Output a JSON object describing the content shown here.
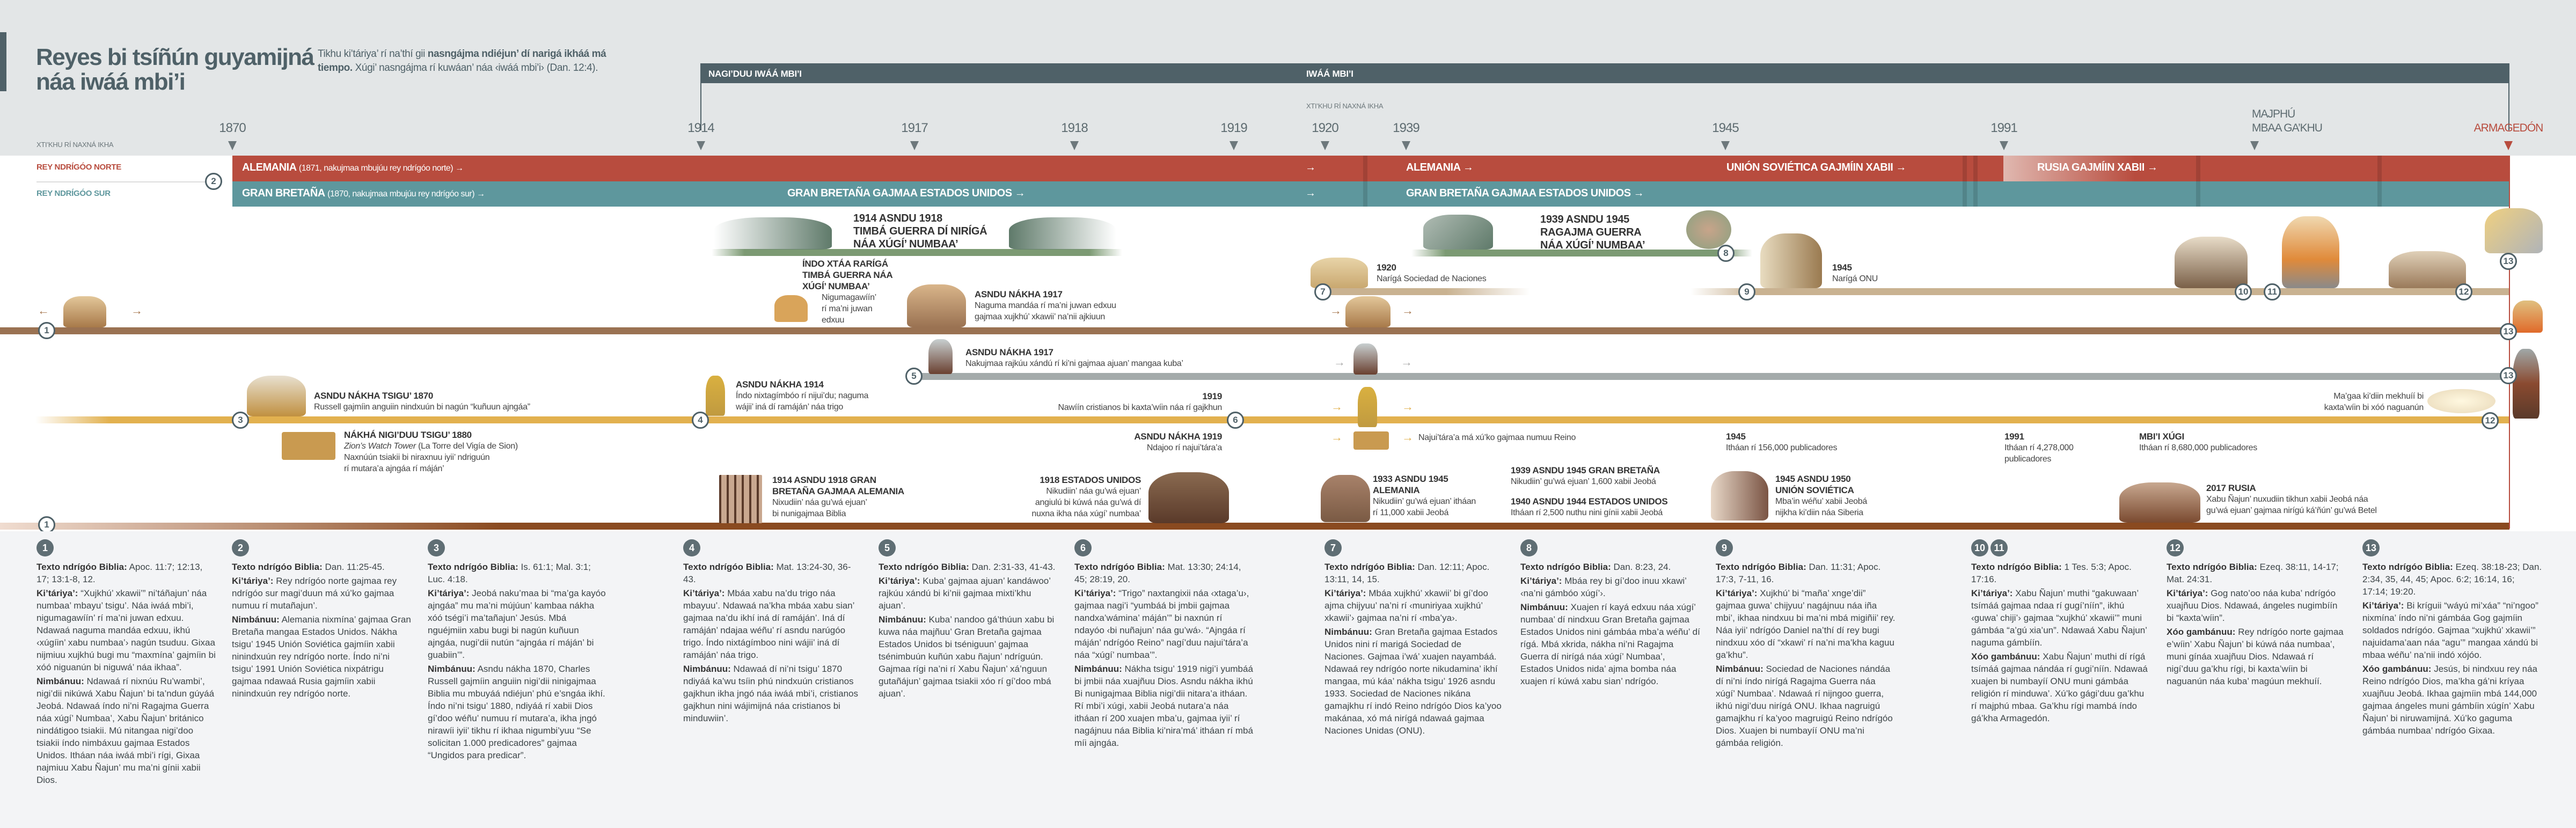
{
  "header": {
    "title": "Reyes bi tsíñún guyamijná\nnáa iwáá mbi’i",
    "intro_pre": "Tikhu ki’táriya’ rí na’thí gii ",
    "intro_bold": "nasngájma ndiéjun’ dí narigá ikháá má tiempo.",
    "intro_post": " Xúgi’ nasngájma rí kuwáan’ náa ‹iwáá mbi’i› (Dan. 12:4)."
  },
  "eras": [
    {
      "label": "NAGI’DUU IWÁÁ MBI’I"
    },
    {
      "label": "IWÁÁ MBI’I"
    }
  ],
  "timeline_label": "XTI’KHU RÍ NAXNÁ IKHA",
  "years": [
    "1870",
    "1914",
    "1917",
    "1918",
    "1919",
    "1920",
    "1939",
    "1945",
    "1991",
    "MAJPHÚ\nMBAA GA’KHU",
    "ARMAGEDÓN"
  ],
  "rows": {
    "north_label": "REY NDRÍGÓO NORTE",
    "south_label": "REY NDRÍGÓO SUR"
  },
  "bars": {
    "alemania_1871": "ALEMANIA",
    "alemania_1871_note": "(1871, nakujmaa mbujúu rey ndrígóo norte) →",
    "gb_1870": "GRAN BRETAÑA",
    "gb_1870_note": "(1870, nakujmaa mbujúu rey ndrígóo sur) →",
    "gb_us": "GRAN BRETAÑA GAJMAA ESTADOS UNIDOS →",
    "arrow": "→",
    "alemania": "ALEMANIA →",
    "gb_us_2": "GRAN BRETAÑA GAJMAA ESTADOS UNIDOS →",
    "ussr": "UNIÓN SOVIÉTICA GAJMÍIN XABII →",
    "russia": "RUSIA GAJMÍIN XABII →"
  },
  "colors": {
    "north": "#b84c3e",
    "south": "#5e979d",
    "era": "#4f6168",
    "beast_line": "#9a7252",
    "wheat_line": "#e2b14f",
    "statue_line": "#a4abab",
    "war_line": "#7c9a73",
    "un_line": "#c9b291"
  },
  "events": {
    "wwi": {
      "title": "1914 ASNDU 1918\nTIMBÁ GUERRA DÍ NIRÍGÁ\nNÁA XÚGÍ’ NUMBAA’"
    },
    "wwi_end": {
      "title": "ÍNDO XTÁA RARÍGÁ\nTIMBÁ GUERRA NÁA\nXÚGÍ’ NUMBAA’",
      "body": "Nigumagawíín’\nrí ma’ni juwan\nedxuu"
    },
    "e1917a": {
      "title": "ASNDU NÁKHA 1917",
      "body": "Naguma mandáa rí ma’ni juwan edxuu\ngajmaa xujkhú’ xkawii’ na’nii ajkiuun"
    },
    "e1917b": {
      "title": "ASNDU NÁKHA 1917",
      "body": "Nakujmaa rajkúu xándú rí ki’ni gajmaa ajuan’ mangaa kuba’"
    },
    "e1870": {
      "title": "ASNDU NÁKHA TSIGU’ 1870",
      "body": "Russell gajmíin anguiin nindxuún bi nagún “kuñuun ajngáa”"
    },
    "e1880": {
      "title": "NÁKHÁ NIGI’DUU TSIGU’ 1880",
      "italic": "Zion’s Watch Tower",
      "body": " (La Torre del Vigía de Sion)\nNaxnúún tsiakii bi niraxnuu iyii’ ndriguún\nrí mutara’a ajngáa rí máján’"
    },
    "e1914": {
      "title": "ASNDU NÁKHA 1914",
      "body": "Índo nixtagímbóo rí nijui’du; naguma\nwájii’ iná dí ramáján’ náa trigo"
    },
    "e1919a": {
      "title": "1919",
      "body": "Nawíín cristianos bi kaxta’wíin náa rí gajkhun"
    },
    "e1919b": {
      "title": "ASNDU NÁKHA 1919",
      "body": "Ndajoo rí najui’tára’a"
    },
    "prison": {
      "title": "1914 ASNDU 1918 GRAN\nBRETAÑA GAJMAA ALEMANIA",
      "body": "Nixudiin’ náa gu’wá ejuan’\nbi nunigajmaa Biblia"
    },
    "us1918": {
      "title": "1918 ESTADOS UNIDOS",
      "body": "Nikudiin’ náa gu’wá ejuan’\nangiulú bi kúwá náa gu’wá dí\nnuxna ikha náa xúgí’ numbaa’"
    },
    "wwii": {
      "title": "1939 ASNDU 1945\nRAGAJMA GUERRA\nNÁA XÚGÍ’ NUMBAA’"
    },
    "league": {
      "title": "1920",
      "body": "Narígá Sociedad de Naciones"
    },
    "un": {
      "title": "1945",
      "body": "Narígá ONU"
    },
    "kingdom": {
      "body": "Najui’tára’a má xú’ko gajmaa numuu Reino"
    },
    "pub1945": {
      "title": "1945",
      "body": "Itháan rí 156,000 publicadores"
    },
    "germany": {
      "title": "1933 ASNDU 1945\nALEMANIA",
      "body": "Nikudiin’ gu’wá ejuan’ itháan\nrí 11,000 xabii Jeobá"
    },
    "gb": {
      "title": "1939 ASNDU 1945 GRAN BRETAÑA",
      "body": "Nikudiin’ gu’wá ejuan’ 1,600 xabii Jeobá"
    },
    "us": {
      "title": "1940 ASNDU 1944 ESTADOS UNIDOS",
      "body": "Itháan rí 2,500 nuthu nini gínii xabii Jeobá"
    },
    "ussr": {
      "title": "1945 ASNDU 1950\nUNIÓN SOVIÉTICA",
      "body": "Mba’in wéñu’ xabii Jeobá\nnijkha ki’diin náa Siberia"
    },
    "gather": {
      "body": "Ma’gaa ki’diin mekhuíí bi\nkaxta’wíin bi xóó naguanún"
    },
    "pub1991": {
      "title": "1991",
      "body": "Itháan rí 4,278,000\npublicadores"
    },
    "today": {
      "title": "MBI’I XÚGI",
      "body": "Itháan rí 8,680,000 publicadores"
    },
    "russia": {
      "title": "2017 RUSIA",
      "body": "Xabu Ñajun’ nuxudiin tikhun xabii Jeobá náa\ngu’wá ejuan’ gajmaa nirígú ká’ñún’ gu’wá Betel"
    }
  },
  "notes": [
    {
      "nums": [
        "1"
      ],
      "s": [
        {
          "l": "Texto ndrígóo Biblia:",
          "t": "Apoc. 11:7; 12:13, 17; 13:1-8, 12."
        },
        {
          "l": "Ki’táriya’:",
          "t": "“Xujkhú’ xkawii’” ni’táñajun’ náa numbaa’ mbayu’ tsigu’. Náa iwáá mbi’i, nigumagawíín’ rí ma’ni juwan edxuu. Ndawaá naguma mandáa edxuu, ikhú ‹xúgíin’ xabu numbaa’› nagún tsuduu. Gixaa nijmiuu xujkhú bugi mu “maxmína’ gajmíin bi xóó niguanún bi niguwá’ náa ikhaa”."
        },
        {
          "l": "Nimbánuu:",
          "t": "Ndawaá rí nixnúu Ru’wambi’, nigi’dii nikúwá Xabu Ñajun’ bi ta’ndun gúyáá Jeobá. Ndawaá índo ni’ni Ragajma Guerra náa xúgí’ Numbaa’, Xabu Ñajun’ británico nindátigoo tsiakii. Mú nitangaa nigi’doo tsiakii índo nimbáxuu gajmaa Estados Unidos. Itháan náa iwáá mbi’i rígi, Gixaa najmiuu Xabu Ñajun’ mu ma’ni gínii xabii Dios."
        }
      ]
    },
    {
      "nums": [
        "2"
      ],
      "s": [
        {
          "l": "Texto ndrígóo Biblia:",
          "t": "Dan. 11:25-45."
        },
        {
          "l": "Ki’táriya’:",
          "t": "Rey ndrígóo norte gajmaa rey ndrígóo sur magi’duun má xú’ko gajmaa numuu rí mutañajun’."
        },
        {
          "l": "Nimbánuu:",
          "t": "Alemania nixmína’ gajmaa Gran Bretaña mangaa Estados Unidos. Nákha tsigu’ 1945 Unión Soviética gajmíin xabii ninindxuún rey ndrígóo norte. Índo ni’ni tsigu’ 1991 Unión Soviética nixpátrigu gajmaa ndawaá Rusia gajmíin xabii ninindxuún rey ndrígóo norte."
        }
      ]
    },
    {
      "nums": [
        "3"
      ],
      "s": [
        {
          "l": "Texto ndrígóo Biblia:",
          "t": "Is. 61:1; Mal. 3:1; Luc. 4:18."
        },
        {
          "l": "Ki’táriya’:",
          "t": "Jeobá naku’maa bi “ma’ga kayóo ajngáa” mu ma’ni mújúun’ kambaa nákha xóó tségi’i ma’tañajun’ Jesús. Mbá nguéjmiin xabu bugi bi nagún kuñuun ajngáa, nugi’dii nutún “ajngáa rí máján’ bi guabiin’”."
        },
        {
          "l": "Nimbánuu:",
          "t": "Asndu nákha 1870, Charles Russell gajmíin anguiin nigi’dii ninigajmaa Biblia mu mbuyáá ndiéjun’ phú e’sngáa ikhí. Índo ni’ni tsigu’ 1880, ndiyáá rí xabii Dios gí’doo wéñu’ numuu rí mutara’a, ikha jngó nirawíi iyii’ tikhu rí ikhaa nigumbi’yuu “Se solicitan 1.000 predicadores” gajmaa “Ungidos para predicar”."
        }
      ]
    },
    {
      "nums": [
        "4"
      ],
      "s": [
        {
          "l": "Texto ndrígóo Biblia:",
          "t": "Mat. 13:24-30, 36-43."
        },
        {
          "l": "Ki’táriya’:",
          "t": "Mbáa xabu na’du trigo náa mbayuu’. Ndawaá na’kha mbáa xabu sian’ gajmaa na’du ikhí iná dí ramáján’. Iná dí ramáján’ ndajaa wéñu’ rí asndu narúgóo trigo. Índo nixtágímboo nini wájii’ iná dí ramáján’ náa trigo."
        },
        {
          "l": "Nimbánuu:",
          "t": "Ndawaá dí ni’ni tsigu’ 1870 ndiyáá ka’wu tsíin phú nindxuún cristianos gajkhun ikha jngó náa iwáá mbi’i, cristianos gajkhun nini wájimijná náa cristianos bi minduwiin’."
        }
      ]
    },
    {
      "nums": [
        "5"
      ],
      "s": [
        {
          "l": "Texto ndrígóo Biblia:",
          "t": "Dan. 2:31-33, 41-43."
        },
        {
          "l": "Ki’táriya’:",
          "t": "Kuba’ gajmaa ajuan’ kandáwoo’ rajkúu xándú bi ki’nii gajmaa mixti’khu ajuan’."
        },
        {
          "l": "Nimbánuu:",
          "t": "Kuba’ nandoo gá’thúun xabu bi kuwa náa majñuu’ Gran Bretaña gajmaa Estados Unidos bi tséniguun’ gajmaa tsénimbuún kuñún xabu ñajun’ ndríguún. Gajmaa rígi na’ni rí Xabu Ñajun’ xá’nguun gutañájun’ gajmaa tsiakii xóo rí gí’doo mbá ajuan’."
        }
      ]
    },
    {
      "nums": [
        "6"
      ],
      "s": [
        {
          "l": "Texto ndrígóo Biblia:",
          "t": "Mat. 13:30; 24:14, 45; 28:19, 20."
        },
        {
          "l": "Ki’táriya’:",
          "t": "“Trigo” naxtangixii náa ‹xtaga’u›, gajmaa nagi’i “yumbáá bi jmbii gajmaa nandxa’wámina’ máján’” bi naxnún rí ndayóo ‹bi nuñajun’ náa gu’wá›. “Ajngáa rí máján’ ndrígóo Reino” nagí’duu najui’tára’a náa “xúgí’ numbaa’”."
        },
        {
          "l": "Nimbánuu:",
          "t": "Nákha tsigu’ 1919 nigi’i yumbáá bi jmbii náa xuajñuu Dios. Asndu nákha ikhú Bi nunigajmaa Biblia nigi’dii nitara’a itháan. Rí mbi’i xúgi, xabii Jeobá nutara’a náa itháan rí 200 xuajen mba’u, gajmaa iyii’ rí nagájnuu náa Biblia ki’nira’má’ itháan rí mbá míi ajngáa."
        }
      ]
    },
    {
      "nums": [
        "7"
      ],
      "s": [
        {
          "l": "Texto ndrígóo Biblia:",
          "t": "Dan. 12:11; Apoc. 13:11, 14, 15."
        },
        {
          "l": "Ki’táriya’:",
          "t": "Mbáa xujkhú’ xkawii’ bi gí’doo ajma chijyuu’ na’ni rí ‹muniriyaa xujkhú’ xkawii’› gajmaa na’ni rí ‹mba’ya›."
        },
        {
          "l": "Nimbánuu:",
          "t": "Gran Bretaña gajmaa Estados Unidos nini rí marigá Sociedad de Naciones. Gajmaa i’wá’ xuajen nayambáá. Ndawaá rey ndrígóo norte nikudamina’ ikhí mangaa, mú káa’ nákha tsigu’ 1926 asndu 1933. Sociedad de Naciones nikána gamajkhu rí indó Reino ndrígóo Dios ka’yoo makánaa, xó má nirígá ndawaá gajmaa Naciones Unidas (ONU)."
        }
      ]
    },
    {
      "nums": [
        "8"
      ],
      "s": [
        {
          "l": "Texto ndrígóo Biblia:",
          "t": "Dan. 8:23, 24."
        },
        {
          "l": "Ki’táriya’:",
          "t": "Mbáa rey bi gí’doo inuu xkawi’ ‹na’ni gámbóo xúgí’›."
        },
        {
          "l": "Nimbánuu:",
          "t": "Xuajen rí kayá edxuu náa xúgí’ numbaa’ dí nindxuu Gran Bretaña gajmaa Estados Unidos nini gámbáa mba’a wéñu’ dí rígá. Mbá xkrida, nákha ni’ni Ragajma Guerra dí nirígá náa xúgí’ Numbaa’, Estados Unidos nida’ ajma bomba náa xuajen rí kúwá xabu sian’ ndrígóo."
        }
      ]
    },
    {
      "nums": [
        "9"
      ],
      "s": [
        {
          "l": "Texto ndrígóo Biblia:",
          "t": "Dan. 11:31; Apoc. 17:3, 7-11, 16."
        },
        {
          "l": "Ki’táriya’:",
          "t": "Xujkhú’ bi “maña’ xnge’dii” gajmaa guwa’ chijyuu’ nagájnuu náa iña mbi’, ikhaa nindxuu bi ma’ni mbá migiñii’ rey. Náa iyii’ ndrígóo Daniel na’thí dí rey bugi nindxuu xóo dí “xkawi’ rí na’ni ma’kha kaguu ga’khu”."
        },
        {
          "l": "Nimbánuu:",
          "t": "Sociedad de Naciones nándáa dí ni’ni índo nirígá Ragajma Guerra náa xúgí’ Numbaa’. Ndawaá rí nijngoo guerra, ikhú nigi’duu nirígá ONU. Ikhaa nagruigú gamajkhu rí ka’yoo magruigú Reino ndrígóo Dios. Xuajen bi numbayíí ONU ma’ni gámbáa religión."
        }
      ]
    },
    {
      "nums": [
        "10",
        "11"
      ],
      "s": [
        {
          "l": "Texto ndrígóo Biblia:",
          "t": "1 Tes. 5:3; Apoc. 17:16."
        },
        {
          "l": "Ki’táriya’:",
          "t": "Xabu Ñajun’ muthi “gakuwaan’ tsímáá gajmaa ndaa rí gugí’níín”, ikhú ‹guwa’ chiji’› gajmaa “xujkhú’ xkawii’” muni gámbáa “a’gú xia’un”. Ndawaá Xabu Ñajun’ naguma gámbíín."
        },
        {
          "l": "Xóo gambánuu:",
          "t": "Xabu Ñajun’ muthi dí rígá tsímáá gajmaa nándáa rí gugi’níín. Ndawaá xuajen bi numbayíí ONU muni gámbáa religión rí minduwa’. Xú’ko gági’duu ga’khu rí majphú mbaa. Ga’khu rígi mambá índo gá’kha Armagedón."
        }
      ]
    },
    {
      "nums": [
        "12"
      ],
      "s": [
        {
          "l": "Texto ndrígóo Biblia:",
          "t": "Ezeq. 38:11, 14-17; Mat. 24:31."
        },
        {
          "l": "Ki’táriya’:",
          "t": "Gog nato’oo náa kuba’ ndrígóo xuajñuu Dios. Ndawaá, ángeles nugimbíín bi “kaxta’wíin”."
        },
        {
          "l": "Xóo gambánuu:",
          "t": "Rey ndrígóo norte gajmaa e’wíin’ Xabu Ñajun’ bi kúwá náa numbaa’, muni gínáa xuajñuu Dios. Ndawaá rí nigí’duu ga’khu rígi, bi kaxta’wíin bi naguanún náa kuba’ magúun mekhuíí."
        }
      ]
    },
    {
      "nums": [
        "13"
      ],
      "s": [
        {
          "l": "Texto ndrígóo Biblia:",
          "t": "Ezeq. 38:18-23; Dan. 2:34, 35, 44, 45; Apoc. 6:2; 16:14, 16; 17:14; 19:20."
        },
        {
          "l": "Ki’táriya’:",
          "t": "Bi kríguii “wáyú mi’xáa” “ni’ngoo” nixmína’ índo ni’ni gámbáa Gog gajmíin soldados ndrígóo. Gajmaa “xujkhú’ xkawii’” najuidama’aan náa “agu’” mangaa xándú bi mbaa wéñu’ na’nii indó xójóo."
        },
        {
          "l": "Xóo gambánuu:",
          "t": "Jesús, bi nindxuu rey náa Reino ndrígóo Dios, ma’kha gá’ni kríyaa xuajñuu Jeobá. Ikhaa gajmíin mbá 144,000 gajmaa ángeles muni gámbíin xúgín’ Xabu Ñajun’ bi niruwamijná. Xú’ko gaguma gámbáa numbaa’ ndrígóo Gixaa."
        }
      ]
    }
  ]
}
